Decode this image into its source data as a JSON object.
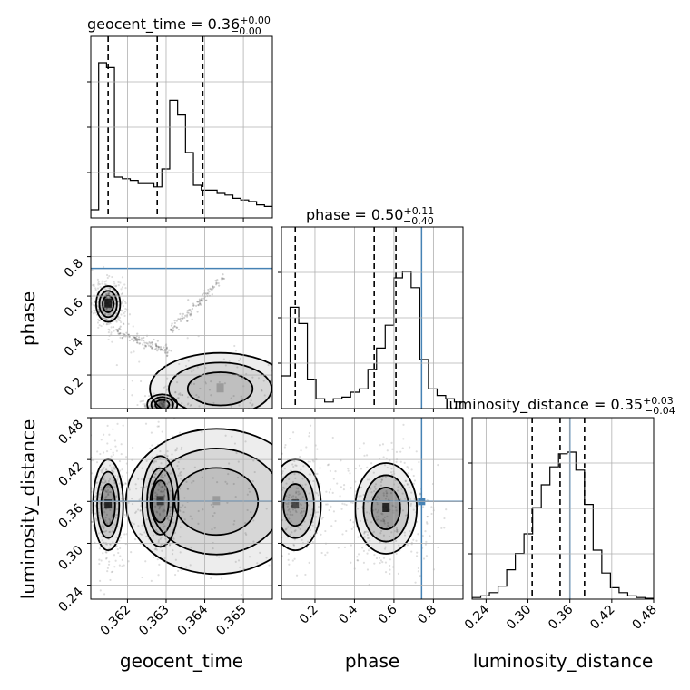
{
  "chart_data": {
    "type": "corner",
    "truth_color": "#4682b4",
    "parameters": [
      "geocent_time",
      "phase",
      "luminosity_distance"
    ],
    "axis_labels": {
      "geocent_time": "geocent_time",
      "phase": "phase",
      "luminosity_distance": "luminosity_distance"
    },
    "titles": {
      "geocent_time": {
        "prefix": "geocent_time = 0.36",
        "sup": "+0.00",
        "sub": "−0.00"
      },
      "phase": {
        "prefix": "phase = 0.50",
        "sup": "+0.11",
        "sub": "−0.40"
      },
      "luminosity_distance": {
        "prefix": "luminosity_distance = 0.35",
        "sup": "+0.03",
        "sub": "−0.04"
      }
    },
    "ranges": {
      "geocent_time": [
        0.36105,
        0.36575
      ],
      "phase": [
        0.03,
        0.95
      ],
      "luminosity_distance": [
        0.22,
        0.48
      ]
    },
    "ticks": {
      "geocent_time": [
        "0.362",
        "0.363",
        "0.364",
        "0.365"
      ],
      "phase": [
        "0.2",
        "0.4",
        "0.6",
        "0.8"
      ],
      "luminosity_distance": [
        "0.24",
        "0.30",
        "0.36",
        "0.42",
        "0.48"
      ]
    },
    "tick_values": {
      "geocent_time": [
        0.362,
        0.363,
        0.364,
        0.365
      ],
      "phase": [
        0.2,
        0.4,
        0.6,
        0.8
      ],
      "luminosity_distance": [
        0.24,
        0.3,
        0.36,
        0.42,
        0.48
      ]
    },
    "truths": {
      "phase": 0.74,
      "luminosity_distance": 0.36
    },
    "quantiles": {
      "geocent_time": [
        0.3615,
        0.36277,
        0.36395
      ],
      "phase": [
        0.1,
        0.5,
        0.61
      ],
      "luminosity_distance": [
        0.306,
        0.346,
        0.381
      ]
    },
    "histograms": {
      "geocent_time": [
        0.05,
        0.95,
        0.92,
        0.25,
        0.24,
        0.23,
        0.21,
        0.21,
        0.19,
        0.3,
        0.72,
        0.63,
        0.4,
        0.2,
        0.17,
        0.17,
        0.15,
        0.14,
        0.12,
        0.11,
        0.1,
        0.08,
        0.07
      ],
      "phase": [
        0.2,
        0.62,
        0.52,
        0.18,
        0.06,
        0.04,
        0.06,
        0.07,
        0.1,
        0.12,
        0.24,
        0.37,
        0.51,
        0.8,
        0.84,
        0.74,
        0.3,
        0.12,
        0.08,
        0.06,
        0.04
      ],
      "luminosity_distance": [
        0.01,
        0.02,
        0.04,
        0.08,
        0.18,
        0.28,
        0.4,
        0.56,
        0.7,
        0.81,
        0.89,
        0.9,
        0.79,
        0.58,
        0.3,
        0.16,
        0.07,
        0.04,
        0.02,
        0.01,
        0.005
      ]
    },
    "density_peaks": {
      "phase_vs_geocent_time": [
        {
          "x": 0.3615,
          "y": 0.56,
          "sx": 0.00012,
          "sy": 0.035,
          "w": 1.0
        },
        {
          "x": 0.3629,
          "y": 0.05,
          "sx": 0.00015,
          "sy": 0.02,
          "w": 0.45
        },
        {
          "x": 0.3644,
          "y": 0.13,
          "sx": 0.0007,
          "sy": 0.07,
          "w": 0.25
        }
      ],
      "luminosity_distance_vs_geocent_time": [
        {
          "x": 0.3615,
          "y": 0.355,
          "sx": 0.00015,
          "sy": 0.025,
          "w": 1.0
        },
        {
          "x": 0.36285,
          "y": 0.36,
          "sx": 0.00018,
          "sy": 0.025,
          "w": 0.75
        },
        {
          "x": 0.3643,
          "y": 0.36,
          "sx": 0.0009,
          "sy": 0.04,
          "w": 0.25
        }
      ],
      "luminosity_distance_vs_phase": [
        {
          "x": 0.1,
          "y": 0.355,
          "sx": 0.05,
          "sy": 0.025,
          "w": 0.75
        },
        {
          "x": 0.56,
          "y": 0.35,
          "sx": 0.06,
          "sy": 0.025,
          "w": 1.0
        }
      ]
    }
  }
}
